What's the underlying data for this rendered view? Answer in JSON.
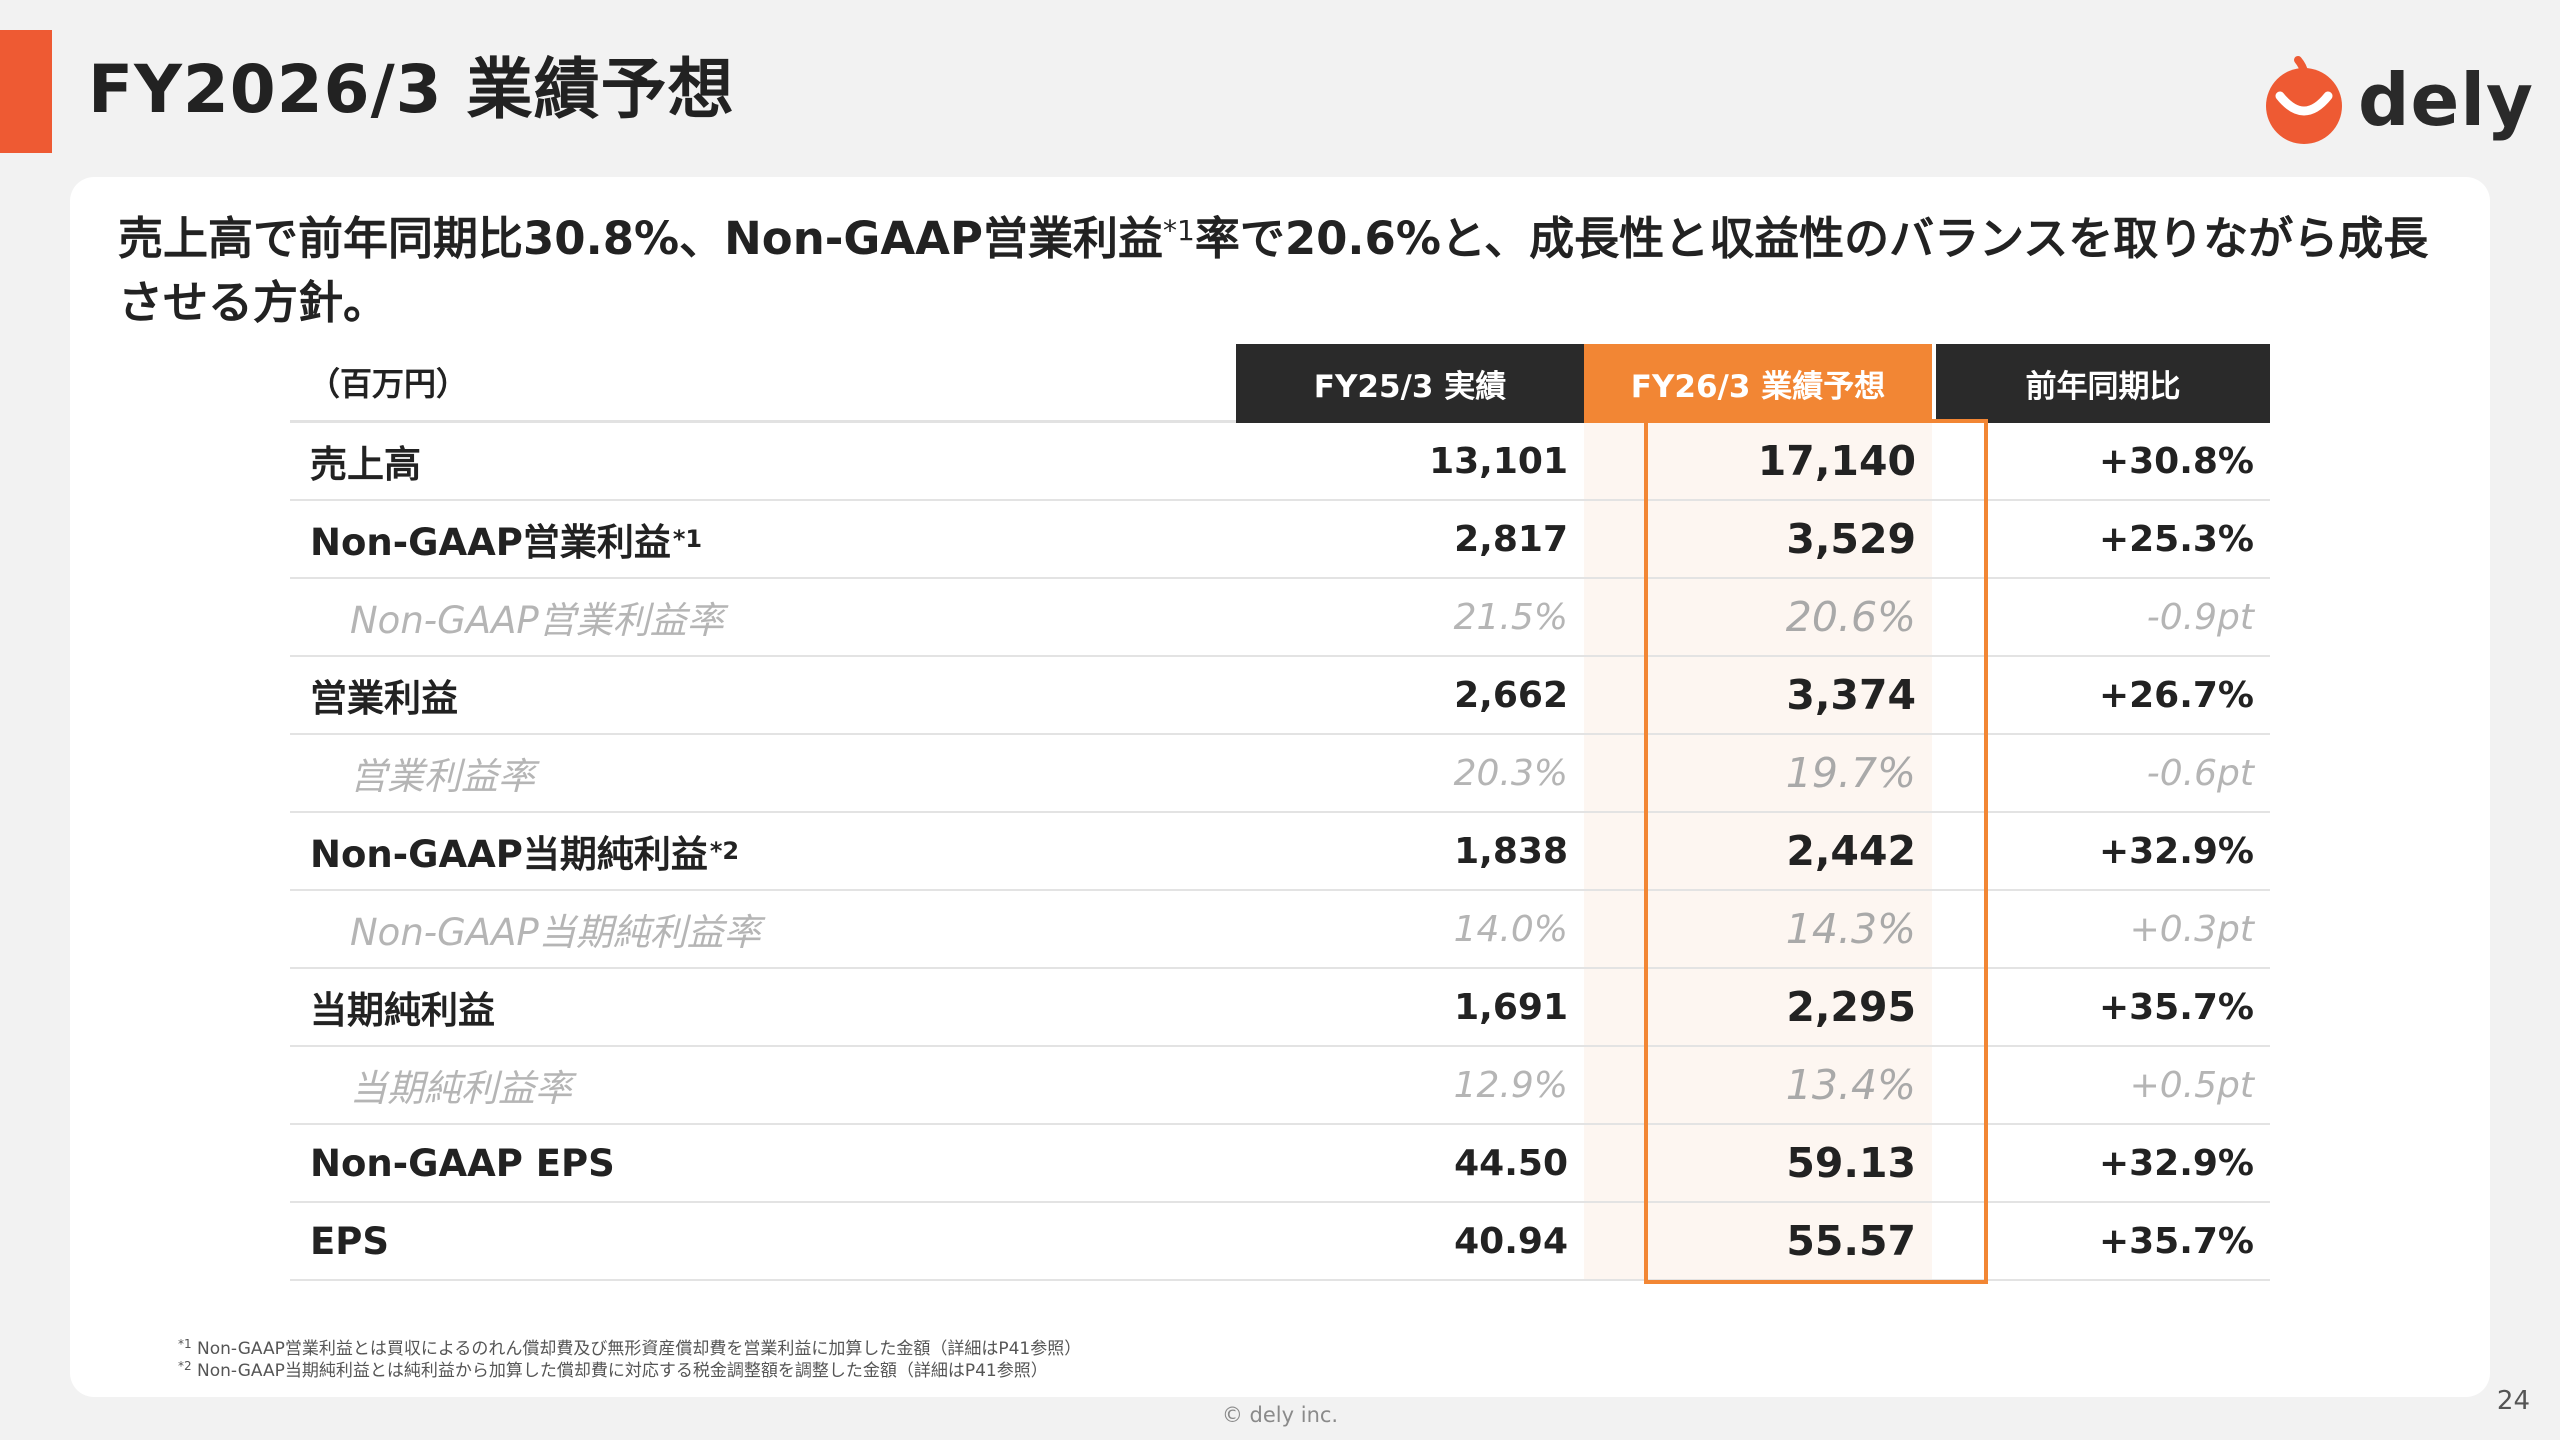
{
  "header": {
    "title": "FY2026/3 業績予想",
    "logo_text": "dely"
  },
  "lead": {
    "part1": "売上高で前年同期比30.8%、Non-GAAP営業利益",
    "footnote_mark": "*1",
    "part2": "率で20.6%と、成長性と収益性のバランスを取りながら成長させる方針。"
  },
  "table": {
    "unit_label": "（百万円）",
    "columns": [
      "FY25/3 実績",
      "FY26/3 業績予想",
      "前年同期比"
    ],
    "rows": [
      {
        "label": "売上高",
        "mark": "",
        "fy25": "13,101",
        "fy26": "17,140",
        "yoy": "+30.8%",
        "sub": false
      },
      {
        "label": "Non-GAAP営業利益",
        "mark": "*1",
        "fy25": "2,817",
        "fy26": "3,529",
        "yoy": "+25.3%",
        "sub": false
      },
      {
        "label": "Non-GAAP営業利益率",
        "mark": "",
        "fy25": "21.5%",
        "fy26": "20.6%",
        "yoy": "-0.9pt",
        "sub": true
      },
      {
        "label": "営業利益",
        "mark": "",
        "fy25": "2,662",
        "fy26": "3,374",
        "yoy": "+26.7%",
        "sub": false
      },
      {
        "label": "営業利益率",
        "mark": "",
        "fy25": "20.3%",
        "fy26": "19.7%",
        "yoy": "-0.6pt",
        "sub": true
      },
      {
        "label": "Non-GAAP当期純利益",
        "mark": "*2",
        "fy25": "1,838",
        "fy26": "2,442",
        "yoy": "+32.9%",
        "sub": false
      },
      {
        "label": "Non-GAAP当期純利益率",
        "mark": "",
        "fy25": "14.0%",
        "fy26": "14.3%",
        "yoy": "+0.3pt",
        "sub": true
      },
      {
        "label": "当期純利益",
        "mark": "",
        "fy25": "1,691",
        "fy26": "2,295",
        "yoy": "+35.7%",
        "sub": false
      },
      {
        "label": "当期純利益率",
        "mark": "",
        "fy25": "12.9%",
        "fy26": "13.4%",
        "yoy": "+0.5pt",
        "sub": true
      },
      {
        "label": "Non-GAAP EPS",
        "mark": "",
        "fy25": "44.50",
        "fy26": "59.13",
        "yoy": "+32.9%",
        "sub": false
      },
      {
        "label": "EPS",
        "mark": "",
        "fy25": "40.94",
        "fy26": "55.57",
        "yoy": "+35.7%",
        "sub": false
      }
    ]
  },
  "footnotes": [
    {
      "mark": "*1",
      "text": " Non-GAAP営業利益とは買収によるのれん償却費及び無形資産償却費を営業利益に加算した金額（詳細はP41参照）"
    },
    {
      "mark": "*2",
      "text": " Non-GAAP当期純利益とは純利益から加算した償却費に対応する税金調整額を調整した金額（詳細はP41参照）"
    }
  ],
  "footer": {
    "copyright": "© dely inc.",
    "page_number": "24"
  },
  "colors": {
    "accent": "#ee5a33",
    "forecast": "#f28634",
    "header_dark": "#2a2a2a"
  }
}
